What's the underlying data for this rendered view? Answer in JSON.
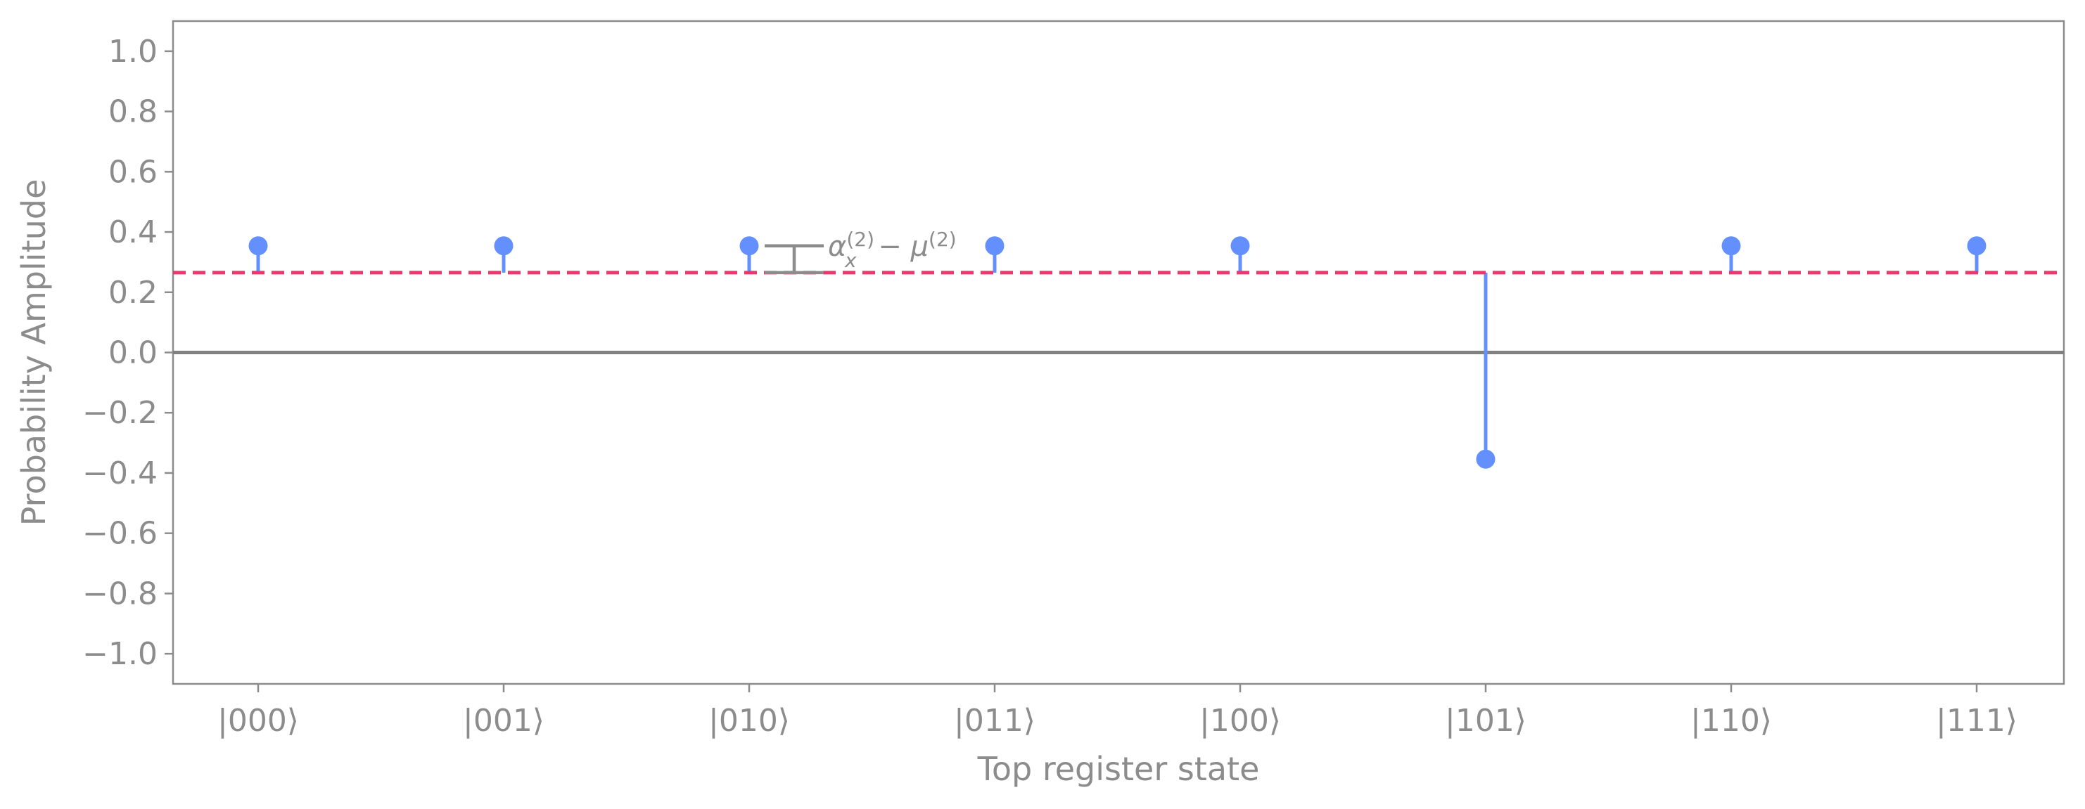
{
  "chart_data": {
    "type": "stem",
    "title": "",
    "xlabel": "Top register state",
    "ylabel": "Probability Amplitude",
    "ylim": [
      -1.1,
      1.1
    ],
    "yticks": [
      1.0,
      0.8,
      0.6,
      0.4,
      0.2,
      0.0,
      -0.2,
      -0.4,
      -0.6,
      -0.8,
      -1.0
    ],
    "ytick_labels": [
      "1.0",
      "0.8",
      "0.6",
      "0.4",
      "0.2",
      "0.0",
      "−0.2",
      "−0.4",
      "−0.6",
      "−0.8",
      "−1.0"
    ],
    "categories": [
      "|000⟩",
      "|001⟩",
      "|010⟩",
      "|011⟩",
      "|100⟩",
      "|101⟩",
      "|110⟩",
      "|111⟩"
    ],
    "values": [
      0.354,
      0.354,
      0.354,
      0.354,
      0.354,
      -0.354,
      0.354,
      0.354
    ],
    "stem_baseline": 0.265,
    "mean_line": {
      "value": 0.265,
      "style": "dashed"
    },
    "zero_line": 0.0,
    "grid": false,
    "annotation": {
      "category_index": 2,
      "value_top": 0.354,
      "value_bottom": 0.265,
      "label_parts": {
        "alpha": "α",
        "alpha_sub": "x",
        "alpha_sup": "(2)",
        "minus": " − ",
        "mu": "μ",
        "mu_sup": "(2)"
      }
    },
    "colors": {
      "stem": "#648fff",
      "mean_line": "#e8396e",
      "zero_line": "#808080",
      "axes": "#8c8c8c",
      "text": "#8c8c8c",
      "annotation": "#8c8c8c"
    }
  }
}
